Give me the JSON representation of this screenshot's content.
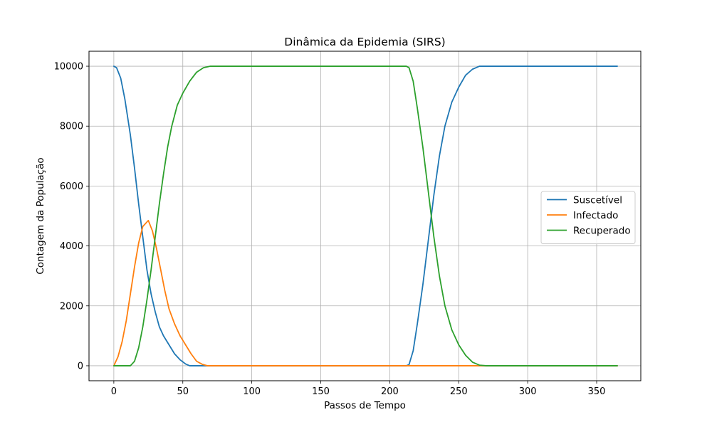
{
  "chart_data": {
    "type": "line",
    "title": "Dinâmica da Epidemia (SIRS)",
    "xlabel": "Passos de Tempo",
    "ylabel": "Contagem da População",
    "xlim": [
      -18,
      382
    ],
    "ylim": [
      -500,
      10500
    ],
    "xticks": [
      0,
      50,
      100,
      150,
      200,
      250,
      300,
      350
    ],
    "yticks": [
      0,
      2000,
      4000,
      6000,
      8000,
      10000
    ],
    "grid": true,
    "legend_position": "center-right",
    "series": [
      {
        "name": "Suscetível",
        "color": "#1f77b4",
        "points": [
          [
            0,
            10000
          ],
          [
            2,
            9950
          ],
          [
            5,
            9600
          ],
          [
            8,
            8900
          ],
          [
            12,
            7700
          ],
          [
            15,
            6600
          ],
          [
            18,
            5400
          ],
          [
            21,
            4300
          ],
          [
            24,
            3200
          ],
          [
            27,
            2400
          ],
          [
            30,
            1800
          ],
          [
            33,
            1300
          ],
          [
            36,
            1000
          ],
          [
            40,
            700
          ],
          [
            44,
            400
          ],
          [
            48,
            200
          ],
          [
            52,
            60
          ],
          [
            55,
            0
          ],
          [
            212,
            0
          ],
          [
            214,
            40
          ],
          [
            217,
            500
          ],
          [
            220,
            1400
          ],
          [
            224,
            2700
          ],
          [
            228,
            4200
          ],
          [
            232,
            5700
          ],
          [
            236,
            7000
          ],
          [
            240,
            8000
          ],
          [
            245,
            8800
          ],
          [
            250,
            9300
          ],
          [
            255,
            9700
          ],
          [
            260,
            9900
          ],
          [
            265,
            10000
          ],
          [
            365,
            10000
          ]
        ]
      },
      {
        "name": "Infectado",
        "color": "#ff7f0e",
        "points": [
          [
            0,
            0
          ],
          [
            3,
            300
          ],
          [
            6,
            800
          ],
          [
            9,
            1500
          ],
          [
            12,
            2400
          ],
          [
            15,
            3300
          ],
          [
            18,
            4100
          ],
          [
            21,
            4650
          ],
          [
            25,
            4850
          ],
          [
            28,
            4500
          ],
          [
            31,
            3900
          ],
          [
            34,
            3200
          ],
          [
            37,
            2500
          ],
          [
            40,
            1900
          ],
          [
            44,
            1400
          ],
          [
            48,
            1000
          ],
          [
            52,
            700
          ],
          [
            56,
            400
          ],
          [
            60,
            150
          ],
          [
            64,
            50
          ],
          [
            68,
            0
          ],
          [
            365,
            0
          ]
        ]
      },
      {
        "name": "Recuperado",
        "color": "#2ca02c",
        "points": [
          [
            0,
            0
          ],
          [
            12,
            0
          ],
          [
            15,
            150
          ],
          [
            18,
            600
          ],
          [
            21,
            1300
          ],
          [
            24,
            2200
          ],
          [
            27,
            3200
          ],
          [
            30,
            4300
          ],
          [
            33,
            5400
          ],
          [
            36,
            6400
          ],
          [
            39,
            7300
          ],
          [
            42,
            8000
          ],
          [
            46,
            8700
          ],
          [
            50,
            9100
          ],
          [
            55,
            9500
          ],
          [
            60,
            9800
          ],
          [
            65,
            9950
          ],
          [
            70,
            10000
          ],
          [
            212,
            10000
          ],
          [
            214,
            9950
          ],
          [
            217,
            9500
          ],
          [
            220,
            8600
          ],
          [
            224,
            7300
          ],
          [
            228,
            5800
          ],
          [
            232,
            4300
          ],
          [
            236,
            3000
          ],
          [
            240,
            2000
          ],
          [
            245,
            1200
          ],
          [
            250,
            700
          ],
          [
            255,
            350
          ],
          [
            260,
            120
          ],
          [
            265,
            20
          ],
          [
            270,
            0
          ],
          [
            365,
            0
          ]
        ]
      }
    ]
  }
}
